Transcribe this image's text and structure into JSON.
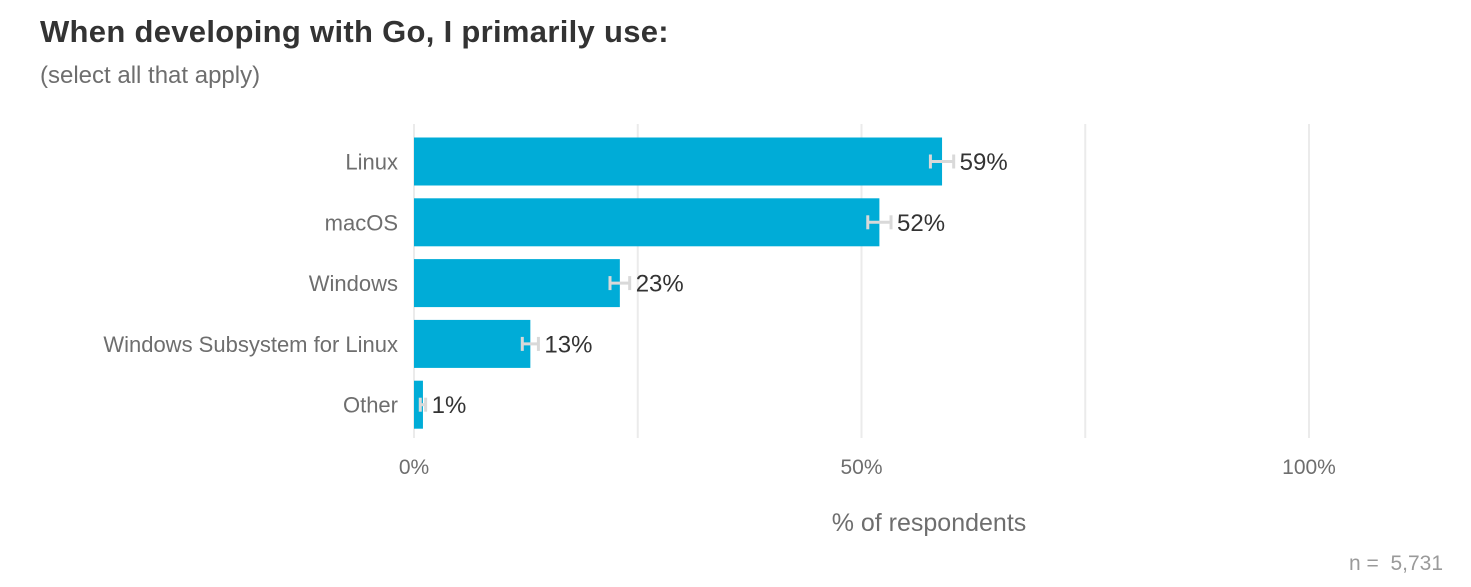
{
  "header": {
    "title": "When developing with Go, I primarily use:",
    "subtitle": "(select all that apply)"
  },
  "footer": {
    "n_label": "n =  5,731"
  },
  "colors": {
    "bar": "#00acd7",
    "error_bar": "#d9d9d9",
    "grid": "#ebebeb",
    "text_dark": "#333333",
    "text_muted": "#6e6e6e"
  },
  "chart_data": {
    "type": "bar",
    "orientation": "horizontal",
    "categories": [
      "Linux",
      "macOS",
      "Windows",
      "Windows Subsystem for Linux",
      "Other"
    ],
    "values": [
      59,
      52,
      23,
      13,
      1
    ],
    "value_labels": [
      "59%",
      "52%",
      "23%",
      "13%",
      "1%"
    ],
    "error_low": [
      57.7,
      50.7,
      21.9,
      12.1,
      0.7
    ],
    "error_high": [
      60.3,
      53.3,
      24.1,
      13.9,
      1.3
    ],
    "xlabel": "% of respondents",
    "xlim": [
      0,
      100
    ],
    "xticks": [
      0,
      50,
      100
    ],
    "xtick_labels": [
      "0%",
      "50%",
      "100%"
    ],
    "grid": true
  }
}
